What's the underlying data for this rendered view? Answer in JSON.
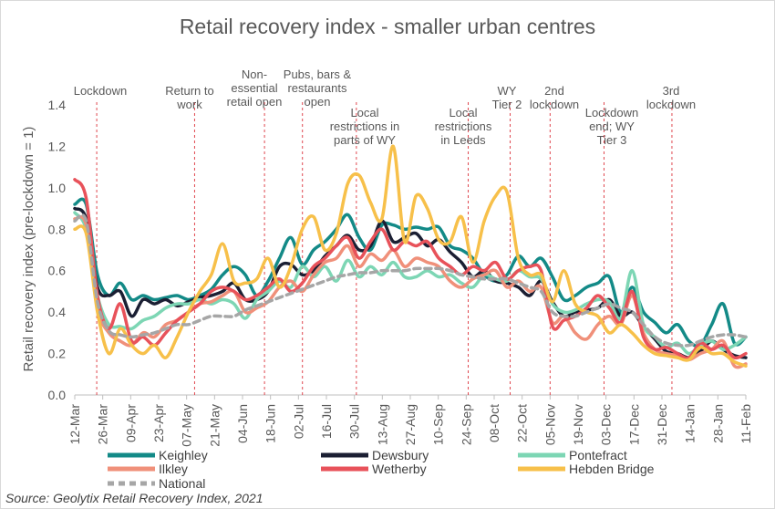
{
  "title": "Retail recovery index - smaller urban centres",
  "source": "Source: Geolytix Retail Recovery Index, 2021",
  "chart_data": {
    "type": "line",
    "title": "Retail recovery index - smaller urban centres",
    "ylabel": "Retail recovery index (pre-lockdown = 1)",
    "xlabel": "",
    "ylim": [
      0,
      1.4
    ],
    "yticks": [
      "0.0",
      "0.2",
      "0.4",
      "0.6",
      "0.8",
      "1.0",
      "1.2",
      "1.4"
    ],
    "grid": false,
    "legend_position": "bottom",
    "x_tick_labels": [
      "12-Mar",
      "26-Mar",
      "09-Apr",
      "23-Apr",
      "07-May",
      "21-May",
      "04-Jun",
      "18-Jun",
      "02-Jul",
      "16-Jul",
      "30-Jul",
      "13-Aug",
      "27-Aug",
      "10-Sep",
      "24-Sep",
      "08-Oct",
      "22-Oct",
      "05-Nov",
      "19-Nov",
      "03-Dec",
      "17-Dec",
      "31-Dec",
      "14-Jan",
      "28-Jan",
      "11-Feb"
    ],
    "annotations": [
      {
        "lines": [
          "Lockdown"
        ],
        "date": "23-Mar"
      },
      {
        "lines": [
          "Return to",
          "work"
        ],
        "date": "11-May"
      },
      {
        "lines": [
          "Non-",
          "essential",
          "retail open"
        ],
        "date": "15-Jun"
      },
      {
        "lines": [
          "Pubs, bars &",
          "restaurants",
          "open"
        ],
        "date": "04-Jul"
      },
      {
        "lines": [
          "Local",
          "restrictions in",
          "parts of WY"
        ],
        "date": "31-Jul"
      },
      {
        "lines": [
          "Local",
          "restrictions",
          "in Leeds"
        ],
        "date": "25-Sep"
      },
      {
        "lines": [
          "WY",
          "Tier 2"
        ],
        "date": "16-Oct"
      },
      {
        "lines": [
          "2nd",
          "lockdown"
        ],
        "date": "05-Nov"
      },
      {
        "lines": [
          "Lockdown",
          "end; WY",
          "Tier 3"
        ],
        "date": "02-Dec"
      },
      {
        "lines": [
          "3rd",
          "lockdown"
        ],
        "date": "05-Jan"
      }
    ],
    "series": [
      {
        "name": "Keighley",
        "color": "#138a87",
        "dashed": false,
        "values": [
          0.92,
          0.92,
          0.58,
          0.48,
          0.54,
          0.46,
          0.48,
          0.46,
          0.47,
          0.48,
          0.46,
          0.48,
          0.51,
          0.58,
          0.62,
          0.58,
          0.48,
          0.55,
          0.66,
          0.76,
          0.63,
          0.7,
          0.74,
          0.8,
          0.87,
          0.76,
          0.7,
          0.82,
          0.82,
          0.8,
          0.81,
          0.8,
          0.81,
          0.72,
          0.7,
          0.66,
          0.58,
          0.55,
          0.58,
          0.67,
          0.62,
          0.66,
          0.57,
          0.46,
          0.48,
          0.52,
          0.54,
          0.57,
          0.4,
          0.52,
          0.4,
          0.35,
          0.3,
          0.34,
          0.26,
          0.24,
          0.34,
          0.44,
          0.25,
          0.28
        ]
      },
      {
        "name": "Dewsbury",
        "color": "#1b1f33",
        "dashed": false,
        "values": [
          0.9,
          0.85,
          0.52,
          0.48,
          0.5,
          0.38,
          0.46,
          0.44,
          0.46,
          0.43,
          0.45,
          0.47,
          0.48,
          0.5,
          0.54,
          0.46,
          0.46,
          0.5,
          0.62,
          0.63,
          0.58,
          0.6,
          0.67,
          0.72,
          0.77,
          0.7,
          0.72,
          0.84,
          0.74,
          0.76,
          0.78,
          0.72,
          0.75,
          0.69,
          0.64,
          0.57,
          0.6,
          0.55,
          0.54,
          0.52,
          0.48,
          0.55,
          0.45,
          0.38,
          0.4,
          0.41,
          0.42,
          0.46,
          0.38,
          0.4,
          0.33,
          0.27,
          0.21,
          0.2,
          0.18,
          0.21,
          0.26,
          0.22,
          0.19,
          0.18
        ]
      },
      {
        "name": "Pontefract",
        "color": "#7dd6b4",
        "dashed": false,
        "values": [
          0.88,
          0.8,
          0.48,
          0.34,
          0.33,
          0.32,
          0.36,
          0.38,
          0.42,
          0.44,
          0.44,
          0.46,
          0.44,
          0.46,
          0.44,
          0.37,
          0.46,
          0.5,
          0.55,
          0.52,
          0.62,
          0.57,
          0.62,
          0.55,
          0.65,
          0.57,
          0.62,
          0.58,
          0.64,
          0.57,
          0.57,
          0.6,
          0.57,
          0.58,
          0.54,
          0.52,
          0.58,
          0.56,
          0.55,
          0.6,
          0.57,
          0.56,
          0.44,
          0.4,
          0.41,
          0.44,
          0.46,
          0.45,
          0.37,
          0.6,
          0.34,
          0.28,
          0.23,
          0.25,
          0.2,
          0.24,
          0.26,
          0.22,
          0.24,
          0.28
        ]
      },
      {
        "name": "Ilkley",
        "color": "#f0907a",
        "dashed": false,
        "values": [
          0.85,
          0.82,
          0.42,
          0.3,
          0.26,
          0.24,
          0.3,
          0.28,
          0.34,
          0.36,
          0.4,
          0.44,
          0.45,
          0.48,
          0.5,
          0.4,
          0.42,
          0.45,
          0.52,
          0.55,
          0.5,
          0.58,
          0.64,
          0.66,
          0.72,
          0.62,
          0.68,
          0.65,
          0.7,
          0.62,
          0.66,
          0.64,
          0.62,
          0.55,
          0.52,
          0.56,
          0.58,
          0.6,
          0.52,
          0.55,
          0.5,
          0.52,
          0.35,
          0.38,
          0.3,
          0.27,
          0.34,
          0.38,
          0.34,
          0.48,
          0.3,
          0.22,
          0.2,
          0.19,
          0.17,
          0.2,
          0.22,
          0.26,
          0.14,
          0.15
        ]
      },
      {
        "name": "Wetherby",
        "color": "#e8525a",
        "dashed": false,
        "values": [
          1.04,
          0.95,
          0.48,
          0.32,
          0.44,
          0.26,
          0.28,
          0.24,
          0.3,
          0.36,
          0.4,
          0.44,
          0.5,
          0.52,
          0.5,
          0.46,
          0.48,
          0.52,
          0.56,
          0.5,
          0.54,
          0.62,
          0.66,
          0.72,
          0.76,
          0.66,
          0.74,
          0.8,
          0.7,
          0.74,
          0.72,
          0.74,
          0.66,
          0.62,
          0.58,
          0.62,
          0.6,
          0.64,
          0.56,
          0.6,
          0.62,
          0.6,
          0.33,
          0.36,
          0.38,
          0.42,
          0.48,
          0.42,
          0.35,
          0.5,
          0.28,
          0.22,
          0.23,
          0.2,
          0.18,
          0.25,
          0.22,
          0.24,
          0.18,
          0.2
        ]
      },
      {
        "name": "Hebden Bridge",
        "color": "#f7c04a",
        "dashed": false,
        "values": [
          0.8,
          0.78,
          0.4,
          0.2,
          0.32,
          0.24,
          0.2,
          0.24,
          0.18,
          0.28,
          0.4,
          0.5,
          0.58,
          0.73,
          0.55,
          0.54,
          0.56,
          0.66,
          0.52,
          0.62,
          0.8,
          0.86,
          0.7,
          0.78,
          1.02,
          1.06,
          0.93,
          0.85,
          1.2,
          0.74,
          0.96,
          0.9,
          0.75,
          0.74,
          0.86,
          0.64,
          0.84,
          0.96,
          0.98,
          0.66,
          0.58,
          0.58,
          0.45,
          0.6,
          0.44,
          0.4,
          0.38,
          0.3,
          0.34,
          0.3,
          0.24,
          0.2,
          0.19,
          0.18,
          0.17,
          0.23,
          0.2,
          0.2,
          0.16,
          0.14
        ]
      },
      {
        "name": "National",
        "color": "#a6a6a6",
        "dashed": true,
        "values": [
          0.84,
          0.84,
          0.45,
          0.31,
          0.29,
          0.28,
          0.29,
          0.3,
          0.32,
          0.34,
          0.34,
          0.36,
          0.38,
          0.38,
          0.38,
          0.41,
          0.43,
          0.45,
          0.47,
          0.49,
          0.51,
          0.53,
          0.55,
          0.57,
          0.58,
          0.59,
          0.59,
          0.6,
          0.6,
          0.6,
          0.61,
          0.61,
          0.61,
          0.6,
          0.58,
          0.57,
          0.56,
          0.56,
          0.56,
          0.54,
          0.52,
          0.5,
          0.4,
          0.38,
          0.38,
          0.4,
          0.42,
          0.44,
          0.42,
          0.4,
          0.34,
          0.28,
          0.25,
          0.24,
          0.24,
          0.26,
          0.28,
          0.29,
          0.29,
          0.28
        ]
      }
    ]
  }
}
